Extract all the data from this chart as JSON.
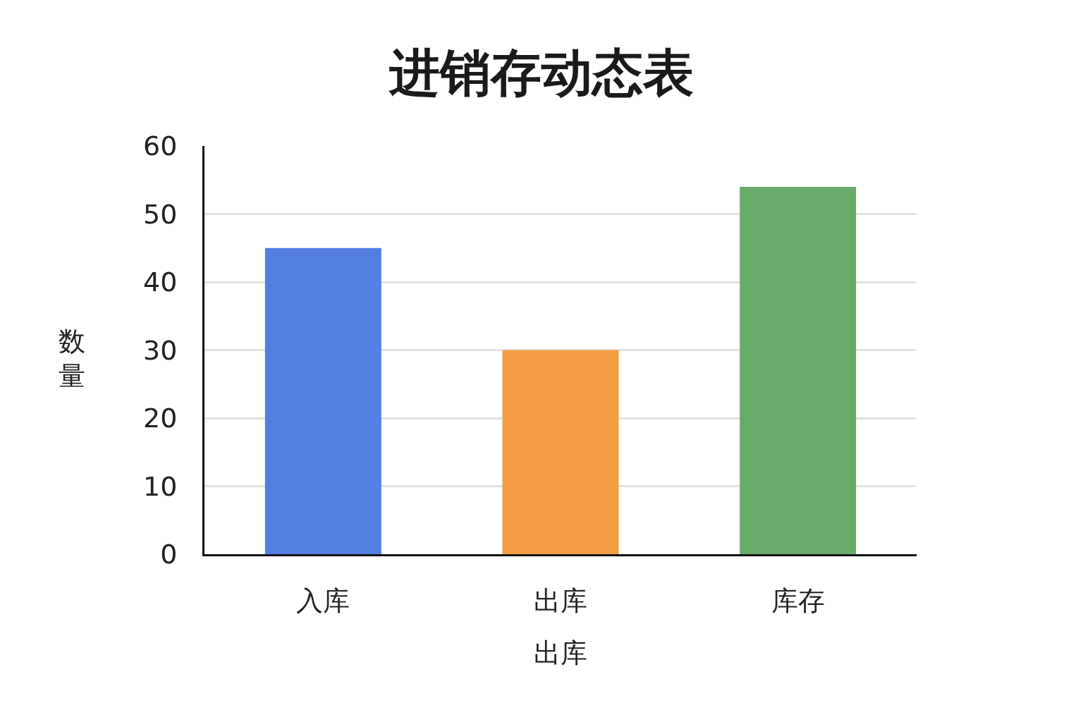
{
  "chart_data": {
    "type": "bar",
    "title": "进销存动态表",
    "xlabel": "出库",
    "ylabel": "数量",
    "categories": [
      "入库",
      "出库",
      "库存"
    ],
    "values": [
      45,
      30,
      54
    ],
    "colors": [
      "#537fe3",
      "#f49d45",
      "#68ab6a"
    ],
    "ylim": [
      0,
      60
    ],
    "yticks": [
      0,
      10,
      20,
      30,
      40,
      50,
      60
    ],
    "grid": "y",
    "legend": false
  }
}
